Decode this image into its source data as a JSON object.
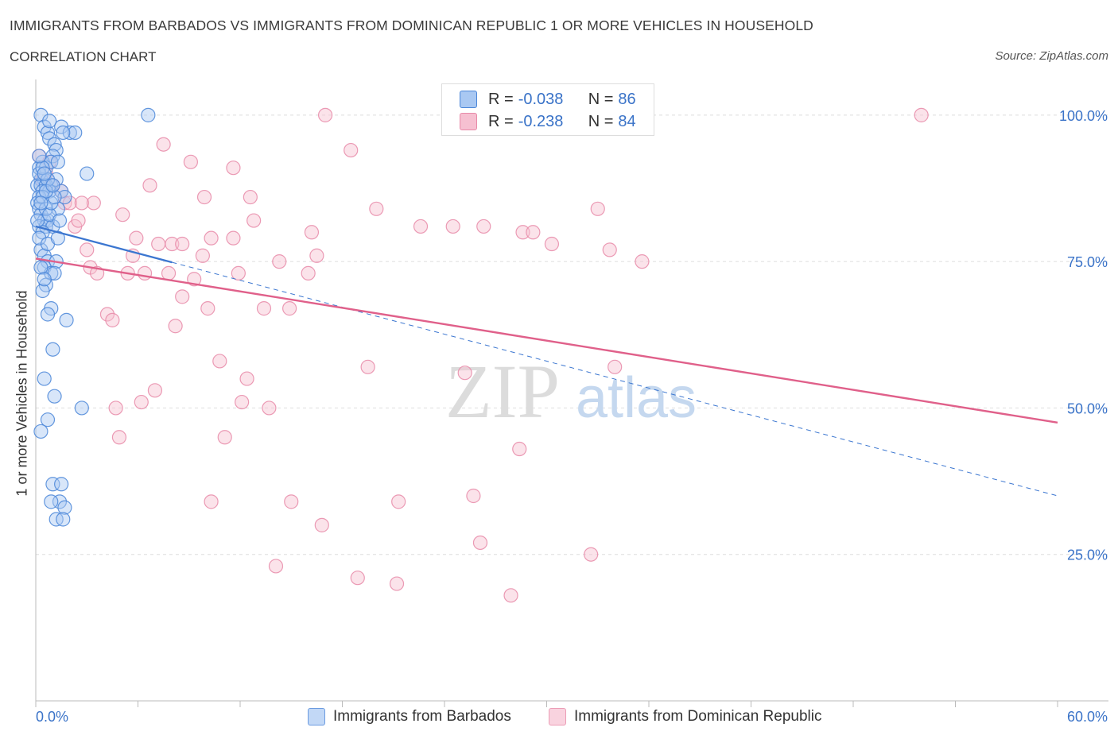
{
  "header": {
    "title": "IMMIGRANTS FROM BARBADOS VS IMMIGRANTS FROM DOMINICAN REPUBLIC 1 OR MORE VEHICLES IN HOUSEHOLD",
    "subtitle": "CORRELATION CHART",
    "source": "Source: ZipAtlas.com"
  },
  "legend": {
    "rows": [
      {
        "r_label": "R =",
        "r_value": "-0.038",
        "n_label": "N =",
        "n_value": "86"
      },
      {
        "r_label": "R =",
        "r_value": "-0.238",
        "n_label": "N =",
        "n_value": "84"
      }
    ]
  },
  "watermark": {
    "zip": "ZIP",
    "atlas": "atlas"
  },
  "colors": {
    "barbados_fill": "#a9c8f2",
    "barbados_stroke": "#4a86d8",
    "barbados_line": "#3b76d0",
    "dominican_fill": "#f6c0d1",
    "dominican_stroke": "#e88aa8",
    "dominican_line": "#e0608a",
    "tick_label": "#3a73c8"
  },
  "chart_data": {
    "type": "scatter",
    "title": "IMMIGRANTS FROM BARBADOS VS IMMIGRANTS FROM DOMINICAN REPUBLIC 1 OR MORE VEHICLES IN HOUSEHOLD",
    "xlabel": "",
    "ylabel": "1 or more Vehicles in Household",
    "xlim": [
      0,
      60
    ],
    "ylim": [
      0,
      105
    ],
    "x_ticks": [
      "0.0%",
      "60.0%"
    ],
    "y_ticks": [
      {
        "value": 25,
        "label": "25.0%"
      },
      {
        "value": 50,
        "label": "50.0%"
      },
      {
        "value": 75,
        "label": "75.0%"
      },
      {
        "value": 100,
        "label": "100.0%"
      }
    ],
    "grid": true,
    "legend_position": "top-center",
    "series": [
      {
        "name": "Immigrants from Barbados",
        "r": -0.038,
        "n": 86,
        "trend": {
          "x0": 0,
          "y0": 81,
          "x1": 60,
          "y1": 35,
          "solid_until_x": 8
        },
        "points": [
          [
            0.3,
            100
          ],
          [
            0.5,
            98
          ],
          [
            0.7,
            97
          ],
          [
            1.5,
            98
          ],
          [
            2.0,
            97
          ],
          [
            6.6,
            100
          ],
          [
            2.3,
            97
          ],
          [
            0.8,
            96
          ],
          [
            1.1,
            95
          ],
          [
            1.2,
            94
          ],
          [
            1.0,
            93
          ],
          [
            0.4,
            92
          ],
          [
            0.2,
            91
          ],
          [
            0.6,
            91
          ],
          [
            0.9,
            92
          ],
          [
            1.3,
            92
          ],
          [
            3.0,
            90
          ],
          [
            0.3,
            89
          ],
          [
            0.5,
            89
          ],
          [
            0.9,
            88
          ],
          [
            1.2,
            89
          ],
          [
            0.1,
            88
          ],
          [
            0.3,
            88
          ],
          [
            0.6,
            88
          ],
          [
            0.8,
            87
          ],
          [
            0.4,
            87
          ],
          [
            1.5,
            87
          ],
          [
            0.2,
            86
          ],
          [
            1.7,
            86
          ],
          [
            0.1,
            85
          ],
          [
            0.2,
            84
          ],
          [
            1.3,
            84
          ],
          [
            0.3,
            83
          ],
          [
            0.5,
            82
          ],
          [
            0.7,
            82
          ],
          [
            0.2,
            81
          ],
          [
            0.6,
            81
          ],
          [
            1.0,
            81
          ],
          [
            0.4,
            80
          ],
          [
            0.3,
            77
          ],
          [
            0.5,
            76
          ],
          [
            0.7,
            75
          ],
          [
            1.2,
            75
          ],
          [
            0.5,
            74
          ],
          [
            0.9,
            73
          ],
          [
            1.1,
            73
          ],
          [
            0.6,
            71
          ],
          [
            0.4,
            70
          ],
          [
            0.9,
            67
          ],
          [
            0.7,
            66
          ],
          [
            1.8,
            65
          ],
          [
            1.0,
            60
          ],
          [
            0.5,
            55
          ],
          [
            1.1,
            52
          ],
          [
            2.7,
            50
          ],
          [
            0.7,
            48
          ],
          [
            0.3,
            46
          ],
          [
            1.0,
            37
          ],
          [
            1.5,
            37
          ],
          [
            1.4,
            34
          ],
          [
            0.9,
            34
          ],
          [
            1.7,
            33
          ],
          [
            1.2,
            31
          ],
          [
            1.6,
            31
          ],
          [
            0.2,
            90
          ],
          [
            0.4,
            86
          ],
          [
            0.6,
            84
          ],
          [
            0.8,
            83
          ],
          [
            0.2,
            79
          ],
          [
            1.4,
            82
          ],
          [
            0.3,
            74
          ],
          [
            0.5,
            72
          ],
          [
            0.1,
            82
          ],
          [
            0.9,
            85
          ],
          [
            1.1,
            86
          ],
          [
            0.7,
            89
          ],
          [
            0.4,
            91
          ],
          [
            1.6,
            97
          ],
          [
            0.8,
            99
          ],
          [
            0.2,
            93
          ],
          [
            0.6,
            87
          ],
          [
            1.0,
            88
          ],
          [
            0.3,
            85
          ],
          [
            0.5,
            90
          ],
          [
            0.7,
            78
          ],
          [
            1.3,
            79
          ]
        ]
      },
      {
        "name": "Immigrants from Dominican Republic",
        "r": -0.238,
        "n": 84,
        "trend": {
          "x0": 0,
          "y0": 75.5,
          "x1": 60,
          "y1": 47.5
        },
        "points": [
          [
            17.0,
            100
          ],
          [
            52.0,
            100
          ],
          [
            7.5,
            95
          ],
          [
            18.5,
            94
          ],
          [
            9.1,
            92
          ],
          [
            11.6,
            91
          ],
          [
            0.2,
            93
          ],
          [
            0.8,
            92
          ],
          [
            0.4,
            89
          ],
          [
            1.0,
            88
          ],
          [
            6.7,
            88
          ],
          [
            9.9,
            86
          ],
          [
            12.6,
            86
          ],
          [
            1.7,
            85
          ],
          [
            2.0,
            85
          ],
          [
            3.4,
            85
          ],
          [
            2.7,
            85
          ],
          [
            20.0,
            84
          ],
          [
            33.0,
            84
          ],
          [
            5.1,
            83
          ],
          [
            12.8,
            82
          ],
          [
            22.6,
            81
          ],
          [
            24.5,
            81
          ],
          [
            26.3,
            81
          ],
          [
            2.3,
            81
          ],
          [
            28.6,
            80
          ],
          [
            29.2,
            80
          ],
          [
            16.2,
            80
          ],
          [
            10.3,
            79
          ],
          [
            11.6,
            79
          ],
          [
            5.9,
            79
          ],
          [
            7.2,
            78
          ],
          [
            8.0,
            78
          ],
          [
            8.6,
            78
          ],
          [
            30.3,
            78
          ],
          [
            3.0,
            77
          ],
          [
            33.7,
            77
          ],
          [
            16.5,
            76
          ],
          [
            9.8,
            76
          ],
          [
            14.3,
            75
          ],
          [
            35.6,
            75
          ],
          [
            5.7,
            76
          ],
          [
            3.2,
            74
          ],
          [
            3.6,
            73
          ],
          [
            7.8,
            73
          ],
          [
            16.0,
            73
          ],
          [
            5.4,
            73
          ],
          [
            6.4,
            73
          ],
          [
            11.9,
            73
          ],
          [
            9.3,
            72
          ],
          [
            8.6,
            69
          ],
          [
            13.4,
            67
          ],
          [
            14.9,
            67
          ],
          [
            10.1,
            67
          ],
          [
            4.2,
            66
          ],
          [
            4.5,
            65
          ],
          [
            8.2,
            64
          ],
          [
            10.8,
            58
          ],
          [
            19.5,
            57
          ],
          [
            25.2,
            56
          ],
          [
            34.0,
            57
          ],
          [
            12.4,
            55
          ],
          [
            7.0,
            53
          ],
          [
            12.1,
            51
          ],
          [
            6.2,
            51
          ],
          [
            4.7,
            50
          ],
          [
            13.7,
            50
          ],
          [
            4.9,
            45
          ],
          [
            11.1,
            45
          ],
          [
            28.4,
            43
          ],
          [
            25.7,
            35
          ],
          [
            10.3,
            34
          ],
          [
            15.0,
            34
          ],
          [
            21.3,
            34
          ],
          [
            16.8,
            30
          ],
          [
            26.1,
            27
          ],
          [
            32.6,
            25
          ],
          [
            14.1,
            23
          ],
          [
            18.9,
            21
          ],
          [
            21.2,
            20
          ],
          [
            27.9,
            18
          ],
          [
            2.5,
            82
          ],
          [
            1.5,
            87
          ],
          [
            0.6,
            90
          ]
        ]
      }
    ]
  }
}
